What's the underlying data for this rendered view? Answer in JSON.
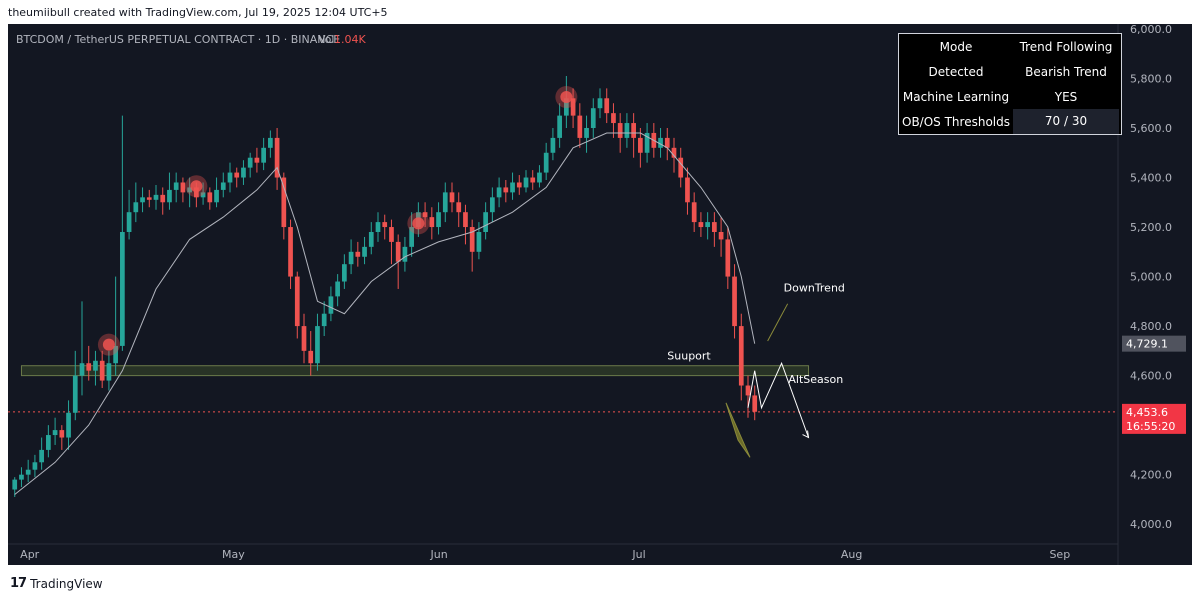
{
  "header": {
    "attribution": "theumiibull created with TradingView.com, Jul 19, 2025 12:04 UTC+5"
  },
  "footer": {
    "logo_text": "TradingView"
  },
  "chart_data": {
    "type": "candlestick",
    "symbol_line": "BTCDOM / TetherUS PERPETUAL CONTRACT · 1D · BINANCE",
    "volume_label": "Vol",
    "volume_value": "1.04K",
    "x_ticks": [
      "Apr",
      "May",
      "Jun",
      "Jul",
      "Aug",
      "Sep"
    ],
    "y_ticks": [
      "6,000.0",
      "5,800.0",
      "5,600.0",
      "5,400.0",
      "5,200.0",
      "5,000.0",
      "4,800.0",
      "4,600.0",
      "4,400.0",
      "4,200.0",
      "4,000.0"
    ],
    "y_tick_values": [
      6000,
      5800,
      5600,
      5400,
      5200,
      5000,
      4800,
      4600,
      4400,
      4200,
      4000
    ],
    "ylim": [
      3920,
      6020
    ],
    "x_start": "2025-03-29",
    "x_end": "2025-09-10",
    "current_price": "4,453.6",
    "current_price_value": 4453.6,
    "countdown": "16:55:20",
    "ma_last": "4,729.1",
    "ma_last_value": 4729.1,
    "colors": {
      "up": "#26a69a",
      "down": "#ef5350",
      "ma": "#b2b5be",
      "zone": "#3a4a2a"
    },
    "annotations": {
      "support": "Suuport",
      "downtrend": "DownTrend",
      "altseason": "AltSeason"
    },
    "support_zone": [
      4600,
      4640
    ],
    "candles": [
      [
        "2025-03-30",
        4140,
        4180,
        4110,
        4190
      ],
      [
        "2025-03-31",
        4180,
        4200,
        4150,
        4230
      ],
      [
        "2025-04-01",
        4200,
        4220,
        4170,
        4260
      ],
      [
        "2025-04-02",
        4220,
        4250,
        4190,
        4280
      ],
      [
        "2025-04-03",
        4250,
        4300,
        4220,
        4350
      ],
      [
        "2025-04-04",
        4300,
        4360,
        4270,
        4400
      ],
      [
        "2025-04-05",
        4360,
        4380,
        4320,
        4430
      ],
      [
        "2025-04-06",
        4380,
        4350,
        4300,
        4400
      ],
      [
        "2025-04-07",
        4350,
        4450,
        4300,
        4500
      ],
      [
        "2025-04-08",
        4450,
        4600,
        4420,
        4700
      ],
      [
        "2025-04-09",
        4600,
        4650,
        4520,
        4900
      ],
      [
        "2025-04-10",
        4650,
        4620,
        4580,
        4720
      ],
      [
        "2025-04-11",
        4620,
        4660,
        4560,
        4700
      ],
      [
        "2025-04-12",
        4660,
        4580,
        4550,
        4700
      ],
      [
        "2025-04-13",
        4580,
        4650,
        4540,
        4700
      ],
      [
        "2025-04-14",
        4650,
        4720,
        4600,
        5000
      ],
      [
        "2025-04-15",
        4720,
        5180,
        4700,
        5650
      ],
      [
        "2025-04-16",
        5180,
        5260,
        5150,
        5350
      ],
      [
        "2025-04-17",
        5260,
        5300,
        5220,
        5380
      ],
      [
        "2025-04-18",
        5300,
        5320,
        5260,
        5360
      ],
      [
        "2025-04-19",
        5320,
        5310,
        5280,
        5350
      ],
      [
        "2025-04-20",
        5310,
        5330,
        5270,
        5370
      ],
      [
        "2025-04-21",
        5330,
        5300,
        5250,
        5360
      ],
      [
        "2025-04-22",
        5300,
        5350,
        5270,
        5420
      ],
      [
        "2025-04-23",
        5350,
        5380,
        5300,
        5420
      ],
      [
        "2025-04-24",
        5380,
        5340,
        5300,
        5400
      ],
      [
        "2025-04-25",
        5340,
        5360,
        5280,
        5400
      ],
      [
        "2025-04-26",
        5360,
        5320,
        5280,
        5380
      ],
      [
        "2025-04-27",
        5320,
        5340,
        5290,
        5380
      ],
      [
        "2025-04-28",
        5340,
        5300,
        5270,
        5360
      ],
      [
        "2025-04-29",
        5300,
        5350,
        5280,
        5400
      ],
      [
        "2025-04-30",
        5350,
        5380,
        5320,
        5420
      ],
      [
        "2025-05-01",
        5380,
        5420,
        5340,
        5460
      ],
      [
        "2025-05-02",
        5420,
        5400,
        5360,
        5440
      ],
      [
        "2025-05-03",
        5400,
        5440,
        5370,
        5470
      ],
      [
        "2025-05-04",
        5440,
        5480,
        5400,
        5500
      ],
      [
        "2025-05-05",
        5480,
        5460,
        5420,
        5520
      ],
      [
        "2025-05-06",
        5460,
        5520,
        5430,
        5560
      ],
      [
        "2025-05-07",
        5520,
        5560,
        5480,
        5590
      ],
      [
        "2025-05-08",
        5560,
        5400,
        5350,
        5600
      ],
      [
        "2025-05-09",
        5400,
        5200,
        5150,
        5420
      ],
      [
        "2025-05-10",
        5200,
        5000,
        4950,
        5230
      ],
      [
        "2025-05-11",
        5000,
        4800,
        4750,
        5020
      ],
      [
        "2025-05-12",
        4800,
        4700,
        4650,
        4850
      ],
      [
        "2025-05-13",
        4700,
        4650,
        4600,
        4780
      ],
      [
        "2025-05-14",
        4650,
        4800,
        4620,
        4850
      ],
      [
        "2025-05-15",
        4800,
        4850,
        4760,
        4900
      ],
      [
        "2025-05-16",
        4850,
        4920,
        4820,
        4960
      ],
      [
        "2025-05-17",
        4920,
        4980,
        4880,
        5010
      ],
      [
        "2025-05-18",
        4980,
        5050,
        4950,
        5090
      ],
      [
        "2025-05-19",
        5050,
        5100,
        5010,
        5150
      ],
      [
        "2025-05-20",
        5100,
        5080,
        5040,
        5140
      ],
      [
        "2025-05-21",
        5080,
        5120,
        5050,
        5160
      ],
      [
        "2025-05-22",
        5120,
        5180,
        5090,
        5220
      ],
      [
        "2025-05-23",
        5180,
        5220,
        5140,
        5260
      ],
      [
        "2025-05-24",
        5220,
        5200,
        5150,
        5250
      ],
      [
        "2025-05-25",
        5200,
        5140,
        5050,
        5230
      ],
      [
        "2025-05-26",
        5140,
        5060,
        4950,
        5170
      ],
      [
        "2025-05-27",
        5060,
        5120,
        5020,
        5160
      ],
      [
        "2025-05-28",
        5120,
        5200,
        5080,
        5260
      ],
      [
        "2025-05-29",
        5200,
        5260,
        5160,
        5300
      ],
      [
        "2025-05-30",
        5260,
        5240,
        5200,
        5300
      ],
      [
        "2025-05-31",
        5240,
        5200,
        5150,
        5280
      ],
      [
        "2025-06-01",
        5200,
        5260,
        5170,
        5300
      ],
      [
        "2025-06-02",
        5260,
        5340,
        5220,
        5380
      ],
      [
        "2025-06-03",
        5340,
        5300,
        5260,
        5380
      ],
      [
        "2025-06-04",
        5300,
        5260,
        5200,
        5340
      ],
      [
        "2025-06-05",
        5260,
        5200,
        5130,
        5290
      ],
      [
        "2025-06-06",
        5200,
        5100,
        5020,
        5230
      ],
      [
        "2025-06-07",
        5100,
        5180,
        5070,
        5220
      ],
      [
        "2025-06-08",
        5180,
        5260,
        5150,
        5300
      ],
      [
        "2025-06-09",
        5260,
        5320,
        5220,
        5360
      ],
      [
        "2025-06-10",
        5320,
        5360,
        5280,
        5400
      ],
      [
        "2025-06-11",
        5360,
        5340,
        5300,
        5390
      ],
      [
        "2025-06-12",
        5340,
        5380,
        5310,
        5420
      ],
      [
        "2025-06-13",
        5380,
        5360,
        5330,
        5410
      ],
      [
        "2025-06-14",
        5360,
        5400,
        5340,
        5430
      ],
      [
        "2025-06-15",
        5400,
        5380,
        5350,
        5430
      ],
      [
        "2025-06-16",
        5380,
        5420,
        5360,
        5450
      ],
      [
        "2025-06-17",
        5420,
        5500,
        5390,
        5540
      ],
      [
        "2025-06-18",
        5500,
        5560,
        5470,
        5600
      ],
      [
        "2025-06-19",
        5560,
        5650,
        5520,
        5700
      ],
      [
        "2025-06-20",
        5650,
        5720,
        5600,
        5810
      ],
      [
        "2025-06-21",
        5720,
        5650,
        5600,
        5760
      ],
      [
        "2025-06-22",
        5650,
        5560,
        5520,
        5700
      ],
      [
        "2025-06-23",
        5560,
        5600,
        5500,
        5650
      ],
      [
        "2025-06-24",
        5600,
        5680,
        5560,
        5720
      ],
      [
        "2025-06-25",
        5680,
        5720,
        5640,
        5760
      ],
      [
        "2025-06-26",
        5720,
        5660,
        5620,
        5760
      ],
      [
        "2025-06-27",
        5660,
        5620,
        5560,
        5700
      ],
      [
        "2025-06-28",
        5620,
        5560,
        5500,
        5660
      ],
      [
        "2025-06-29",
        5560,
        5620,
        5520,
        5660
      ],
      [
        "2025-06-30",
        5620,
        5560,
        5480,
        5660
      ],
      [
        "2025-07-01",
        5560,
        5500,
        5440,
        5600
      ],
      [
        "2025-07-02",
        5500,
        5580,
        5460,
        5620
      ],
      [
        "2025-07-03",
        5580,
        5520,
        5480,
        5620
      ],
      [
        "2025-07-04",
        5520,
        5560,
        5480,
        5600
      ],
      [
        "2025-07-05",
        5560,
        5520,
        5470,
        5600
      ],
      [
        "2025-07-06",
        5520,
        5480,
        5420,
        5560
      ],
      [
        "2025-07-07",
        5480,
        5400,
        5360,
        5520
      ],
      [
        "2025-07-08",
        5400,
        5300,
        5250,
        5440
      ],
      [
        "2025-07-09",
        5300,
        5220,
        5180,
        5340
      ],
      [
        "2025-07-10",
        5220,
        5200,
        5160,
        5260
      ],
      [
        "2025-07-11",
        5200,
        5220,
        5150,
        5260
      ],
      [
        "2025-07-12",
        5220,
        5180,
        5120,
        5260
      ],
      [
        "2025-07-13",
        5180,
        5150,
        5080,
        5240
      ],
      [
        "2025-07-14",
        5150,
        5000,
        4950,
        5200
      ],
      [
        "2025-07-15",
        5000,
        4800,
        4750,
        5050
      ],
      [
        "2025-07-16",
        4800,
        4560,
        4500,
        4850
      ],
      [
        "2025-07-17",
        4560,
        4520,
        4430,
        4600
      ],
      [
        "2025-07-18",
        4520,
        4454,
        4420,
        4560
      ]
    ],
    "ma_series": [
      [
        "2025-03-30",
        4120
      ],
      [
        "2025-04-05",
        4250
      ],
      [
        "2025-04-10",
        4400
      ],
      [
        "2025-04-15",
        4620
      ],
      [
        "2025-04-20",
        4950
      ],
      [
        "2025-04-25",
        5150
      ],
      [
        "2025-04-30",
        5240
      ],
      [
        "2025-05-05",
        5350
      ],
      [
        "2025-05-08",
        5440
      ],
      [
        "2025-05-11",
        5200
      ],
      [
        "2025-05-14",
        4900
      ],
      [
        "2025-05-18",
        4850
      ],
      [
        "2025-05-22",
        4980
      ],
      [
        "2025-05-27",
        5080
      ],
      [
        "2025-06-01",
        5140
      ],
      [
        "2025-06-06",
        5180
      ],
      [
        "2025-06-12",
        5260
      ],
      [
        "2025-06-17",
        5360
      ],
      [
        "2025-06-21",
        5520
      ],
      [
        "2025-06-26",
        5580
      ],
      [
        "2025-07-01",
        5580
      ],
      [
        "2025-07-05",
        5520
      ],
      [
        "2025-07-10",
        5360
      ],
      [
        "2025-07-14",
        5200
      ],
      [
        "2025-07-16",
        5000
      ],
      [
        "2025-07-18",
        4729
      ]
    ],
    "markers": [
      [
        "2025-04-13",
        4725
      ],
      [
        "2025-04-26",
        5365
      ],
      [
        "2025-05-29",
        5215
      ],
      [
        "2025-06-20",
        5725
      ]
    ]
  }
}
